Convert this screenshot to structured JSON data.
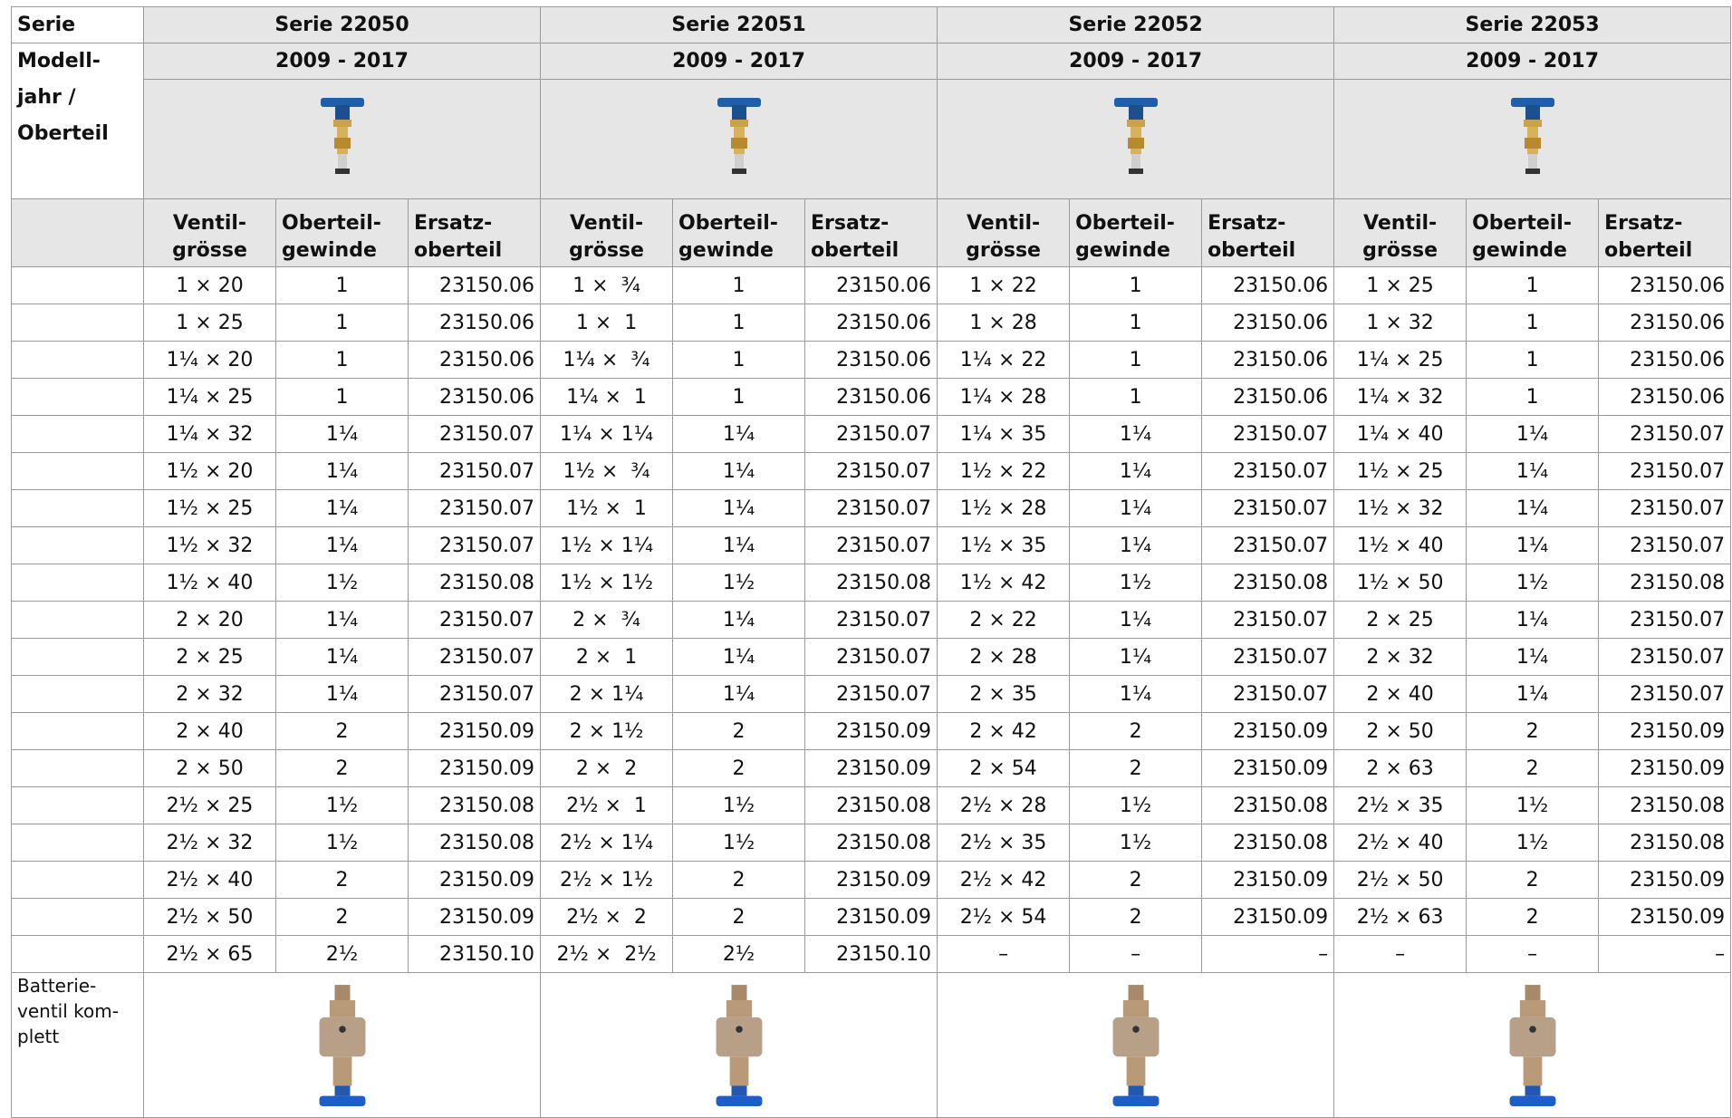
{
  "header": {
    "series_label": "Serie",
    "left_label_lines": [
      "Modell-",
      "jahr /",
      "Oberteil"
    ],
    "series": [
      {
        "name": "Serie 22050",
        "years": "2009 - 2017"
      },
      {
        "name": "Serie 22051",
        "years": "2009 - 2017"
      },
      {
        "name": "Serie 22052",
        "years": "2009 - 2017"
      },
      {
        "name": "Serie 22053",
        "years": "2009 - 2017"
      }
    ],
    "column_headers": [
      [
        "Ventil-",
        "grösse"
      ],
      [
        "Oberteil-",
        "gewinde"
      ],
      [
        "Ersatz-",
        "oberteil"
      ]
    ]
  },
  "table": {
    "rows": [
      [
        "1 × 20",
        "1",
        "23150.06",
        "1 ×  ¾",
        "1",
        "23150.06",
        "1 × 22",
        "1",
        "23150.06",
        "1 × 25",
        "1",
        "23150.06"
      ],
      [
        "1 × 25",
        "1",
        "23150.06",
        "1 ×  1",
        "1",
        "23150.06",
        "1 × 28",
        "1",
        "23150.06",
        "1 × 32",
        "1",
        "23150.06"
      ],
      [
        "1¼ × 20",
        "1",
        "23150.06",
        "1¼ ×  ¾",
        "1",
        "23150.06",
        "1¼ × 22",
        "1",
        "23150.06",
        "1¼ × 25",
        "1",
        "23150.06"
      ],
      [
        "1¼ × 25",
        "1",
        "23150.06",
        "1¼ ×  1",
        "1",
        "23150.06",
        "1¼ × 28",
        "1",
        "23150.06",
        "1¼ × 32",
        "1",
        "23150.06"
      ],
      [
        "1¼ × 32",
        "1¼",
        "23150.07",
        "1¼ × 1¼",
        "1¼",
        "23150.07",
        "1¼ × 35",
        "1¼",
        "23150.07",
        "1¼ × 40",
        "1¼",
        "23150.07"
      ],
      [
        "1½ × 20",
        "1¼",
        "23150.07",
        "1½ ×  ¾",
        "1¼",
        "23150.07",
        "1½ × 22",
        "1¼",
        "23150.07",
        "1½ × 25",
        "1¼",
        "23150.07"
      ],
      [
        "1½ × 25",
        "1¼",
        "23150.07",
        "1½ ×  1",
        "1¼",
        "23150.07",
        "1½ × 28",
        "1¼",
        "23150.07",
        "1½ × 32",
        "1¼",
        "23150.07"
      ],
      [
        "1½ × 32",
        "1¼",
        "23150.07",
        "1½ × 1¼",
        "1¼",
        "23150.07",
        "1½ × 35",
        "1¼",
        "23150.07",
        "1½ × 40",
        "1¼",
        "23150.07"
      ],
      [
        "1½ × 40",
        "1½",
        "23150.08",
        "1½ × 1½",
        "1½",
        "23150.08",
        "1½ × 42",
        "1½",
        "23150.08",
        "1½ × 50",
        "1½",
        "23150.08"
      ],
      [
        "2 × 20",
        "1¼",
        "23150.07",
        "2 ×  ¾",
        "1¼",
        "23150.07",
        "2 × 22",
        "1¼",
        "23150.07",
        "2 × 25",
        "1¼",
        "23150.07"
      ],
      [
        "2 × 25",
        "1¼",
        "23150.07",
        "2 ×  1",
        "1¼",
        "23150.07",
        "2 × 28",
        "1¼",
        "23150.07",
        "2 × 32",
        "1¼",
        "23150.07"
      ],
      [
        "2 × 32",
        "1¼",
        "23150.07",
        "2 × 1¼",
        "1¼",
        "23150.07",
        "2 × 35",
        "1¼",
        "23150.07",
        "2 × 40",
        "1¼",
        "23150.07"
      ],
      [
        "2 × 40",
        "2",
        "23150.09",
        "2 × 1½",
        "2",
        "23150.09",
        "2 × 42",
        "2",
        "23150.09",
        "2 × 50",
        "2",
        "23150.09"
      ],
      [
        "2 × 50",
        "2",
        "23150.09",
        "2 ×  2",
        "2",
        "23150.09",
        "2 × 54",
        "2",
        "23150.09",
        "2 × 63",
        "2",
        "23150.09"
      ],
      [
        "2½ × 25",
        "1½",
        "23150.08",
        "2½ ×  1",
        "1½",
        "23150.08",
        "2½ × 28",
        "1½",
        "23150.08",
        "2½ × 35",
        "1½",
        "23150.08"
      ],
      [
        "2½ × 32",
        "1½",
        "23150.08",
        "2½ × 1¼",
        "1½",
        "23150.08",
        "2½ × 35",
        "1½",
        "23150.08",
        "2½ × 40",
        "1½",
        "23150.08"
      ],
      [
        "2½ × 40",
        "2",
        "23150.09",
        "2½ × 1½",
        "2",
        "23150.09",
        "2½ × 42",
        "2",
        "23150.09",
        "2½ × 50",
        "2",
        "23150.09"
      ],
      [
        "2½ × 50",
        "2",
        "23150.09",
        "2½ ×  2",
        "2",
        "23150.09",
        "2½ × 54",
        "2",
        "23150.09",
        "2½ × 63",
        "2",
        "23150.09"
      ],
      [
        "2½ × 65",
        "2½",
        "23150.10",
        "2½ ×  2½",
        "2½",
        "23150.10",
        "–",
        "–",
        "–",
        "–",
        "–",
        "–"
      ]
    ]
  },
  "footer": {
    "label_lines": [
      "Batterie-",
      "ventil kom-",
      "plett"
    ]
  }
}
